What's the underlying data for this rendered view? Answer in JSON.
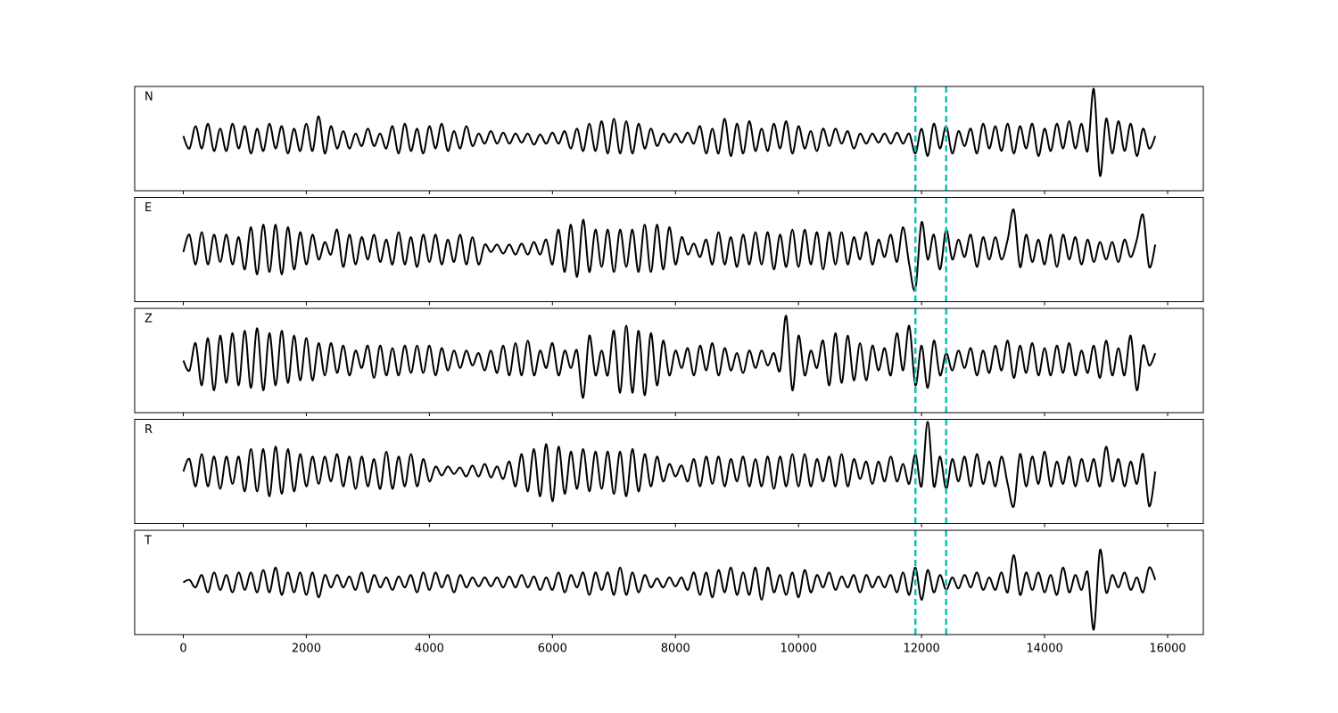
{
  "chart_data": {
    "type": "line",
    "layout": "stacked",
    "xlim": [
      -790,
      16580
    ],
    "ylim": [
      -1.05,
      1.05
    ],
    "xticks": [
      0,
      2000,
      4000,
      6000,
      8000,
      10000,
      12000,
      14000,
      16000
    ],
    "vlines": [
      11900,
      12400
    ],
    "vline_color": "#17bfb0",
    "x": [
      0,
      100,
      200,
      300,
      400,
      500,
      600,
      700,
      800,
      900,
      1000,
      1100,
      1200,
      1300,
      1400,
      1500,
      1600,
      1700,
      1800,
      1900,
      2000,
      2100,
      2200,
      2300,
      2400,
      2500,
      2600,
      2700,
      2800,
      2900,
      3000,
      3100,
      3200,
      3300,
      3400,
      3500,
      3600,
      3700,
      3800,
      3900,
      4000,
      4100,
      4200,
      4300,
      4400,
      4500,
      4600,
      4700,
      4800,
      4900,
      5000,
      5100,
      5200,
      5300,
      5400,
      5500,
      5600,
      5700,
      5800,
      5900,
      6000,
      6100,
      6200,
      6300,
      6400,
      6500,
      6600,
      6700,
      6800,
      6900,
      7000,
      7100,
      7200,
      7300,
      7400,
      7500,
      7600,
      7700,
      7800,
      7900,
      8000,
      8100,
      8200,
      8300,
      8400,
      8500,
      8600,
      8700,
      8800,
      8900,
      9000,
      9100,
      9200,
      9300,
      9400,
      9500,
      9600,
      9700,
      9800,
      9900,
      10000,
      10100,
      10200,
      10300,
      10400,
      10500,
      10600,
      10700,
      10800,
      10900,
      11000,
      11100,
      11200,
      11300,
      11400,
      11500,
      11600,
      11700,
      11800,
      11900,
      12000,
      12100,
      12200,
      12300,
      12400,
      12500,
      12600,
      12700,
      12800,
      12900,
      13000,
      13100,
      13200,
      13300,
      13400,
      13500,
      13600,
      13700,
      13800,
      13900,
      14000,
      14100,
      14200,
      14300,
      14400,
      14500,
      14600,
      14700,
      14800,
      14900,
      15000,
      15100,
      15200,
      15300,
      15400,
      15500,
      15600,
      15700,
      15800
    ],
    "series": [
      {
        "name": "N",
        "color": "#000000",
        "values": [
          0.05,
          -0.2,
          0.25,
          -0.2,
          0.3,
          -0.25,
          0.2,
          -0.25,
          0.3,
          -0.2,
          0.25,
          -0.3,
          0.2,
          -0.25,
          0.3,
          -0.2,
          0.25,
          -0.3,
          0.2,
          -0.25,
          0.3,
          -0.25,
          0.45,
          -0.3,
          0.25,
          -0.2,
          0.15,
          -0.2,
          0.1,
          -0.15,
          0.2,
          -0.15,
          0.1,
          -0.2,
          0.25,
          -0.3,
          0.3,
          -0.25,
          0.2,
          -0.3,
          0.25,
          -0.2,
          0.3,
          -0.25,
          0.15,
          -0.2,
          0.25,
          -0.15,
          0.1,
          -0.1,
          0.15,
          -0.1,
          0.12,
          -0.1,
          0.1,
          -0.08,
          0.1,
          -0.12,
          0.08,
          -0.1,
          0.12,
          -0.1,
          0.15,
          -0.2,
          0.2,
          -0.25,
          0.3,
          -0.25,
          0.35,
          -0.3,
          0.4,
          -0.3,
          0.35,
          -0.3,
          0.3,
          -0.2,
          0.2,
          -0.15,
          0.1,
          -0.08,
          0.1,
          -0.08,
          0.12,
          -0.1,
          0.25,
          -0.3,
          0.2,
          -0.3,
          0.4,
          -0.35,
          0.3,
          -0.3,
          0.35,
          -0.25,
          0.2,
          -0.25,
          0.3,
          -0.2,
          0.35,
          -0.3,
          0.25,
          -0.2,
          0.15,
          -0.25,
          0.2,
          -0.15,
          0.2,
          -0.1,
          0.15,
          -0.2,
          0.1,
          -0.1,
          0.1,
          -0.08,
          0.1,
          -0.1,
          0.12,
          -0.1,
          0.1,
          -0.3,
          0.2,
          -0.35,
          0.3,
          -0.2,
          0.25,
          -0.3,
          0.15,
          -0.15,
          0.2,
          -0.3,
          0.3,
          -0.2,
          0.25,
          -0.25,
          0.3,
          -0.3,
          0.25,
          -0.2,
          0.3,
          -0.35,
          0.2,
          -0.25,
          0.3,
          -0.2,
          0.35,
          -0.2,
          0.3,
          -0.25,
          1.0,
          -0.75,
          0.4,
          -0.3,
          0.35,
          -0.25,
          0.3,
          -0.35,
          0.2,
          -0.2,
          0.05
        ]
      },
      {
        "name": "E",
        "color": "#000000",
        "values": [
          -0.05,
          0.3,
          -0.3,
          0.35,
          -0.3,
          0.3,
          -0.25,
          0.3,
          -0.3,
          0.25,
          -0.4,
          0.45,
          -0.5,
          0.5,
          -0.45,
          0.5,
          -0.5,
          0.45,
          -0.4,
          0.35,
          -0.3,
          0.3,
          -0.2,
          0.15,
          -0.1,
          0.4,
          -0.35,
          0.3,
          -0.3,
          0.25,
          -0.2,
          0.3,
          -0.25,
          0.2,
          -0.3,
          0.35,
          -0.3,
          0.25,
          -0.35,
          0.3,
          -0.25,
          0.3,
          -0.3,
          0.2,
          -0.25,
          0.3,
          -0.3,
          0.25,
          -0.3,
          0.1,
          -0.05,
          0.1,
          -0.08,
          0.1,
          -0.1,
          0.12,
          -0.1,
          0.15,
          -0.1,
          0.2,
          -0.3,
          0.4,
          -0.45,
          0.5,
          -0.55,
          0.6,
          -0.45,
          0.4,
          -0.35,
          0.4,
          -0.45,
          0.4,
          -0.35,
          0.4,
          -0.45,
          0.5,
          -0.45,
          0.5,
          -0.4,
          0.45,
          -0.3,
          0.25,
          -0.1,
          0.12,
          -0.15,
          0.2,
          -0.3,
          0.35,
          -0.3,
          0.25,
          -0.35,
          0.3,
          -0.3,
          0.35,
          -0.3,
          0.35,
          -0.4,
          0.3,
          -0.35,
          0.4,
          -0.35,
          0.4,
          -0.3,
          0.35,
          -0.4,
          0.35,
          -0.3,
          0.35,
          -0.3,
          0.25,
          -0.2,
          0.35,
          -0.3,
          0.2,
          -0.15,
          0.3,
          -0.25,
          0.45,
          -0.3,
          -0.8,
          0.55,
          -0.2,
          0.3,
          -0.4,
          0.4,
          -0.2,
          0.2,
          -0.15,
          0.3,
          -0.35,
          0.25,
          -0.2,
          0.25,
          -0.2,
          0.2,
          0.8,
          -0.35,
          0.3,
          -0.25,
          0.2,
          -0.3,
          0.3,
          -0.35,
          0.3,
          -0.2,
          0.25,
          -0.3,
          0.2,
          -0.25,
          0.15,
          -0.2,
          0.15,
          -0.25,
          0.2,
          -0.15,
          0.2,
          0.7,
          -0.35,
          0.1
        ]
      },
      {
        "name": "Z",
        "color": "#000000",
        "values": [
          0.0,
          -0.2,
          0.35,
          -0.5,
          0.45,
          -0.6,
          0.5,
          -0.45,
          0.55,
          -0.5,
          0.6,
          -0.55,
          0.65,
          -0.6,
          0.55,
          -0.5,
          0.6,
          -0.45,
          0.5,
          -0.4,
          0.45,
          -0.4,
          0.35,
          -0.3,
          0.35,
          -0.25,
          0.3,
          -0.3,
          0.2,
          -0.15,
          0.3,
          -0.35,
          0.3,
          -0.3,
          0.25,
          -0.3,
          0.3,
          -0.25,
          0.3,
          -0.25,
          0.3,
          -0.3,
          0.25,
          -0.2,
          0.2,
          -0.15,
          0.2,
          -0.1,
          0.15,
          -0.2,
          0.2,
          -0.25,
          0.3,
          -0.3,
          0.35,
          -0.3,
          0.4,
          -0.3,
          0.2,
          -0.15,
          0.35,
          -0.3,
          0.2,
          -0.15,
          0.2,
          -0.75,
          0.5,
          -0.3,
          0.2,
          -0.3,
          0.6,
          -0.65,
          0.7,
          -0.65,
          0.6,
          -0.7,
          0.55,
          -0.5,
          0.4,
          -0.3,
          0.2,
          -0.15,
          0.25,
          -0.3,
          0.3,
          -0.2,
          0.35,
          -0.3,
          0.25,
          -0.2,
          0.15,
          -0.25,
          0.2,
          -0.15,
          0.2,
          -0.1,
          0.15,
          -0.2,
          0.9,
          -0.6,
          0.5,
          -0.3,
          0.2,
          -0.15,
          0.4,
          -0.5,
          0.55,
          -0.45,
          0.5,
          -0.4,
          0.35,
          -0.4,
          0.3,
          -0.2,
          0.25,
          -0.3,
          0.55,
          -0.2,
          0.7,
          -0.5,
          0.3,
          -0.55,
          0.4,
          -0.3,
          0.15,
          -0.2,
          0.2,
          -0.15,
          0.25,
          -0.3,
          0.2,
          -0.25,
          0.3,
          -0.2,
          0.4,
          -0.35,
          0.3,
          -0.25,
          0.35,
          -0.3,
          0.25,
          -0.3,
          0.3,
          -0.25,
          0.35,
          -0.3,
          0.2,
          -0.25,
          0.3,
          -0.35,
          0.4,
          -0.3,
          0.25,
          -0.3,
          0.5,
          -0.6,
          0.3,
          -0.1,
          0.15
        ]
      },
      {
        "name": "R",
        "color": "#000000",
        "values": [
          0.0,
          0.25,
          -0.3,
          0.35,
          -0.3,
          0.3,
          -0.35,
          0.3,
          -0.25,
          0.3,
          -0.4,
          0.45,
          -0.4,
          0.45,
          -0.5,
          0.5,
          -0.45,
          0.45,
          -0.4,
          0.35,
          -0.3,
          0.3,
          -0.25,
          0.3,
          -0.2,
          0.35,
          -0.3,
          0.3,
          -0.35,
          0.3,
          -0.3,
          0.25,
          -0.35,
          0.4,
          -0.35,
          0.3,
          -0.3,
          0.35,
          -0.3,
          0.25,
          -0.2,
          0.1,
          -0.08,
          0.1,
          -0.05,
          0.08,
          -0.1,
          0.12,
          -0.1,
          0.15,
          -0.12,
          0.1,
          -0.15,
          0.2,
          -0.3,
          0.35,
          -0.4,
          0.45,
          -0.5,
          0.55,
          -0.6,
          0.5,
          -0.45,
          0.4,
          -0.35,
          0.45,
          -0.4,
          0.4,
          -0.35,
          0.4,
          -0.45,
          0.4,
          -0.5,
          0.45,
          -0.4,
          0.35,
          -0.3,
          0.3,
          -0.2,
          0.15,
          -0.1,
          0.12,
          -0.2,
          0.25,
          -0.3,
          0.3,
          -0.25,
          0.3,
          -0.3,
          0.25,
          -0.2,
          0.3,
          -0.3,
          0.25,
          -0.3,
          0.3,
          -0.35,
          0.3,
          -0.3,
          0.35,
          -0.3,
          0.35,
          -0.3,
          0.25,
          -0.2,
          0.3,
          -0.3,
          0.35,
          -0.3,
          0.25,
          -0.15,
          0.2,
          -0.25,
          0.2,
          -0.2,
          0.3,
          -0.2,
          0.15,
          -0.25,
          0.35,
          -0.3,
          1.0,
          -0.3,
          0.3,
          -0.35,
          0.25,
          -0.2,
          0.3,
          -0.3,
          0.35,
          -0.25,
          0.2,
          -0.3,
          0.3,
          -0.25,
          -0.7,
          0.35,
          -0.3,
          0.3,
          -0.25,
          0.4,
          -0.3,
          0.2,
          -0.25,
          0.3,
          -0.3,
          0.25,
          -0.2,
          0.25,
          -0.3,
          0.5,
          -0.2,
          0.25,
          -0.3,
          0.2,
          -0.25,
          0.35,
          -0.7,
          0.0
        ]
      },
      {
        "name": "T",
        "color": "#000000",
        "values": [
          0.0,
          0.05,
          -0.1,
          0.15,
          -0.2,
          0.2,
          -0.15,
          0.15,
          -0.2,
          0.2,
          -0.15,
          0.2,
          -0.2,
          0.25,
          -0.2,
          0.3,
          -0.25,
          0.2,
          -0.2,
          0.2,
          -0.25,
          0.2,
          -0.3,
          0.15,
          -0.1,
          0.15,
          -0.1,
          0.12,
          -0.15,
          0.2,
          -0.2,
          0.15,
          -0.1,
          0.1,
          -0.15,
          0.12,
          -0.1,
          0.15,
          -0.2,
          0.2,
          -0.15,
          0.2,
          -0.1,
          0.15,
          -0.2,
          0.15,
          -0.1,
          0.1,
          -0.08,
          0.1,
          -0.08,
          0.1,
          -0.1,
          0.12,
          -0.1,
          0.15,
          -0.1,
          0.12,
          -0.15,
          0.1,
          -0.15,
          0.2,
          -0.2,
          0.15,
          -0.1,
          0.2,
          -0.25,
          0.2,
          -0.15,
          0.2,
          -0.25,
          0.3,
          -0.25,
          0.2,
          -0.2,
          0.15,
          -0.1,
          0.08,
          -0.1,
          0.1,
          -0.08,
          0.1,
          -0.15,
          0.2,
          -0.25,
          0.2,
          -0.3,
          0.25,
          -0.2,
          0.3,
          -0.25,
          0.2,
          -0.25,
          0.3,
          -0.35,
          0.3,
          -0.2,
          0.15,
          -0.25,
          0.2,
          -0.3,
          0.25,
          -0.2,
          0.15,
          -0.1,
          0.2,
          -0.15,
          0.12,
          -0.1,
          0.15,
          -0.2,
          0.15,
          -0.1,
          0.12,
          -0.1,
          0.15,
          -0.2,
          0.2,
          -0.25,
          0.3,
          -0.35,
          0.25,
          -0.2,
          0.15,
          -0.15,
          0.1,
          -0.12,
          0.15,
          -0.1,
          0.2,
          -0.15,
          0.1,
          -0.15,
          0.2,
          -0.2,
          0.55,
          -0.25,
          0.2,
          -0.15,
          0.2,
          -0.2,
          0.15,
          -0.25,
          0.3,
          -0.2,
          0.15,
          -0.15,
          0.2,
          -0.95,
          0.65,
          -0.2,
          0.15,
          -0.1,
          0.2,
          -0.15,
          0.1,
          -0.2,
          0.3,
          0.05
        ]
      }
    ]
  }
}
